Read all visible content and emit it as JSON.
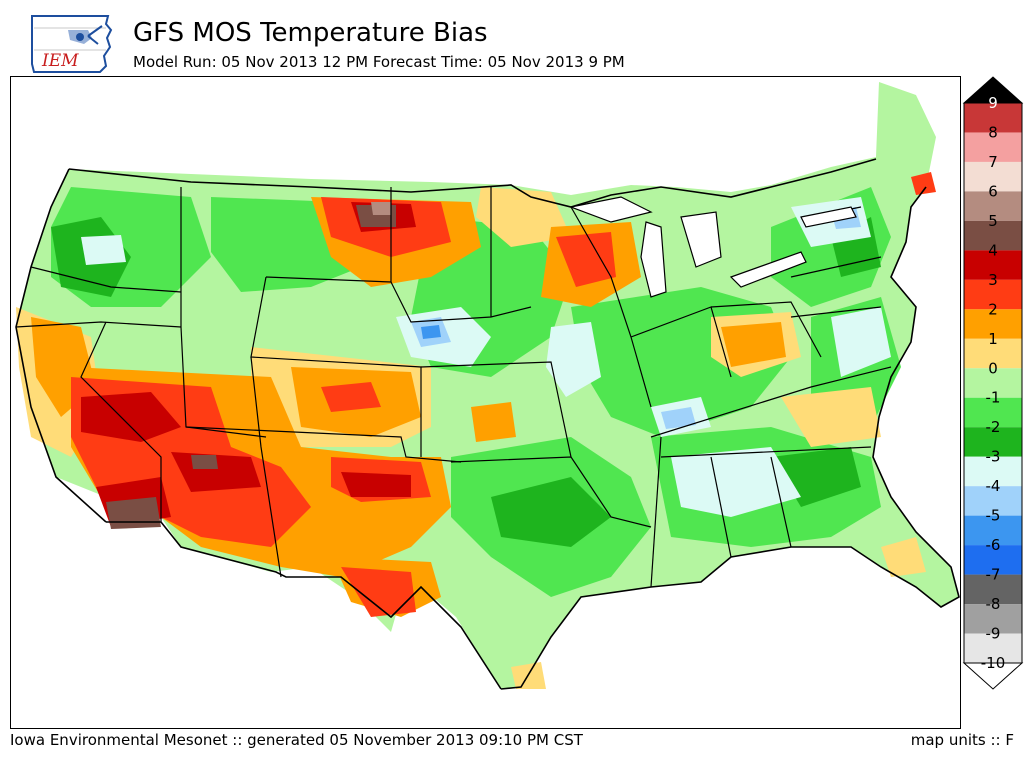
{
  "header": {
    "logo_text": "IEM",
    "title": "GFS MOS Temperature Bias",
    "subtitle": "Model Run: 05 Nov 2013 12 PM Forecast Time: 05 Nov 2013 9 PM"
  },
  "legend": {
    "levels": [
      {
        "label": "9",
        "color": "#000000"
      },
      {
        "label": "8",
        "color": "#c83737"
      },
      {
        "label": "7",
        "color": "#f4a0a0"
      },
      {
        "label": "6",
        "color": "#f3ddd3"
      },
      {
        "label": "5",
        "color": "#b48c80"
      },
      {
        "label": "4",
        "color": "#7a4e44"
      },
      {
        "label": "3",
        "color": "#c80000"
      },
      {
        "label": "2",
        "color": "#ff3c14"
      },
      {
        "label": "1",
        "color": "#ffa000"
      },
      {
        "label": "0",
        "color": "#ffdc78"
      },
      {
        "label": "-1",
        "color": "#b4f5a0"
      },
      {
        "label": "-2",
        "color": "#50e650"
      },
      {
        "label": "-3",
        "color": "#1eb41e"
      },
      {
        "label": "-4",
        "color": "#dcfaf5"
      },
      {
        "label": "-5",
        "color": "#a0d2fa"
      },
      {
        "label": "-6",
        "color": "#3c96f0"
      },
      {
        "label": "-7",
        "color": "#1e6ef0"
      },
      {
        "label": "-8",
        "color": "#646464"
      },
      {
        "label": "-9",
        "color": "#a0a0a0"
      },
      {
        "label": "-10",
        "color": "#e6e6e6"
      }
    ]
  },
  "footer": {
    "credit": "Iowa Environmental Mesonet :: generated 05 November 2013 09:10 PM CST",
    "units": "map units :: F"
  }
}
